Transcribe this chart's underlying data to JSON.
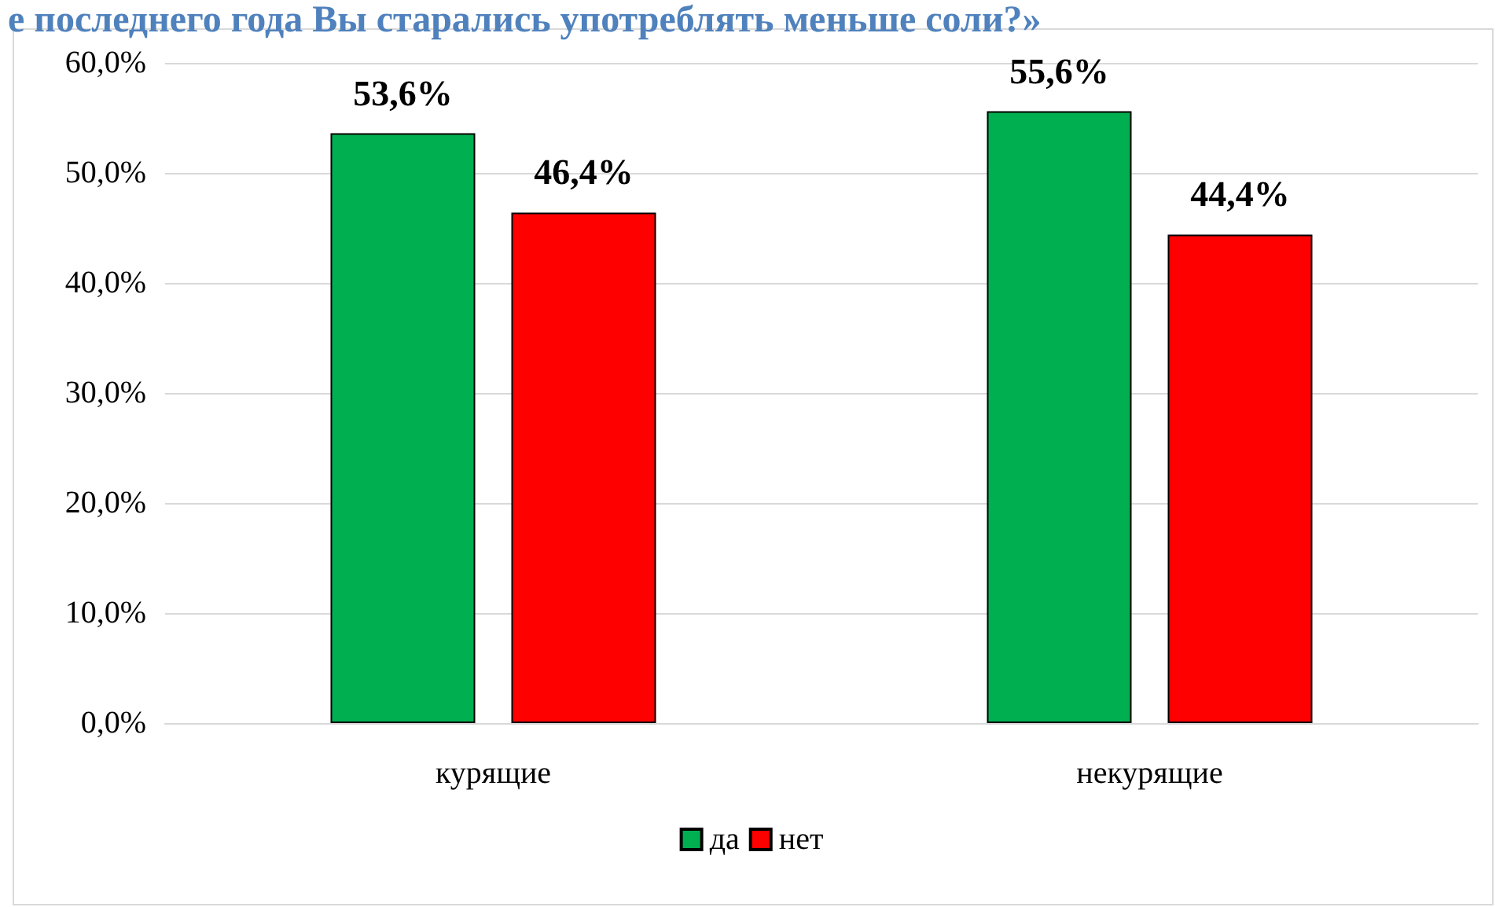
{
  "chart_data": {
    "type": "bar",
    "title": "е последнего года Вы старались употреблять меньше соли?»",
    "categories": [
      "курящие",
      "некурящие"
    ],
    "series": [
      {
        "name": "да",
        "color": "#00b050",
        "values": [
          53.6,
          55.6
        ]
      },
      {
        "name": "нет",
        "color": "#ff0000",
        "values": [
          46.4,
          44.4
        ]
      }
    ],
    "value_labels": [
      [
        "53,6%",
        "55,6%"
      ],
      [
        "46,4%",
        "44,4%"
      ]
    ],
    "ylim": [
      0,
      60
    ],
    "yticks": [
      {
        "value": 0,
        "label": "0,0%"
      },
      {
        "value": 10,
        "label": "10,0%"
      },
      {
        "value": 20,
        "label": "20,0%"
      },
      {
        "value": 30,
        "label": "30,0%"
      },
      {
        "value": 40,
        "label": "40,0%"
      },
      {
        "value": 50,
        "label": "50,0%"
      },
      {
        "value": 60,
        "label": "60,0%"
      }
    ],
    "grid": "y",
    "legend": "bottom"
  }
}
